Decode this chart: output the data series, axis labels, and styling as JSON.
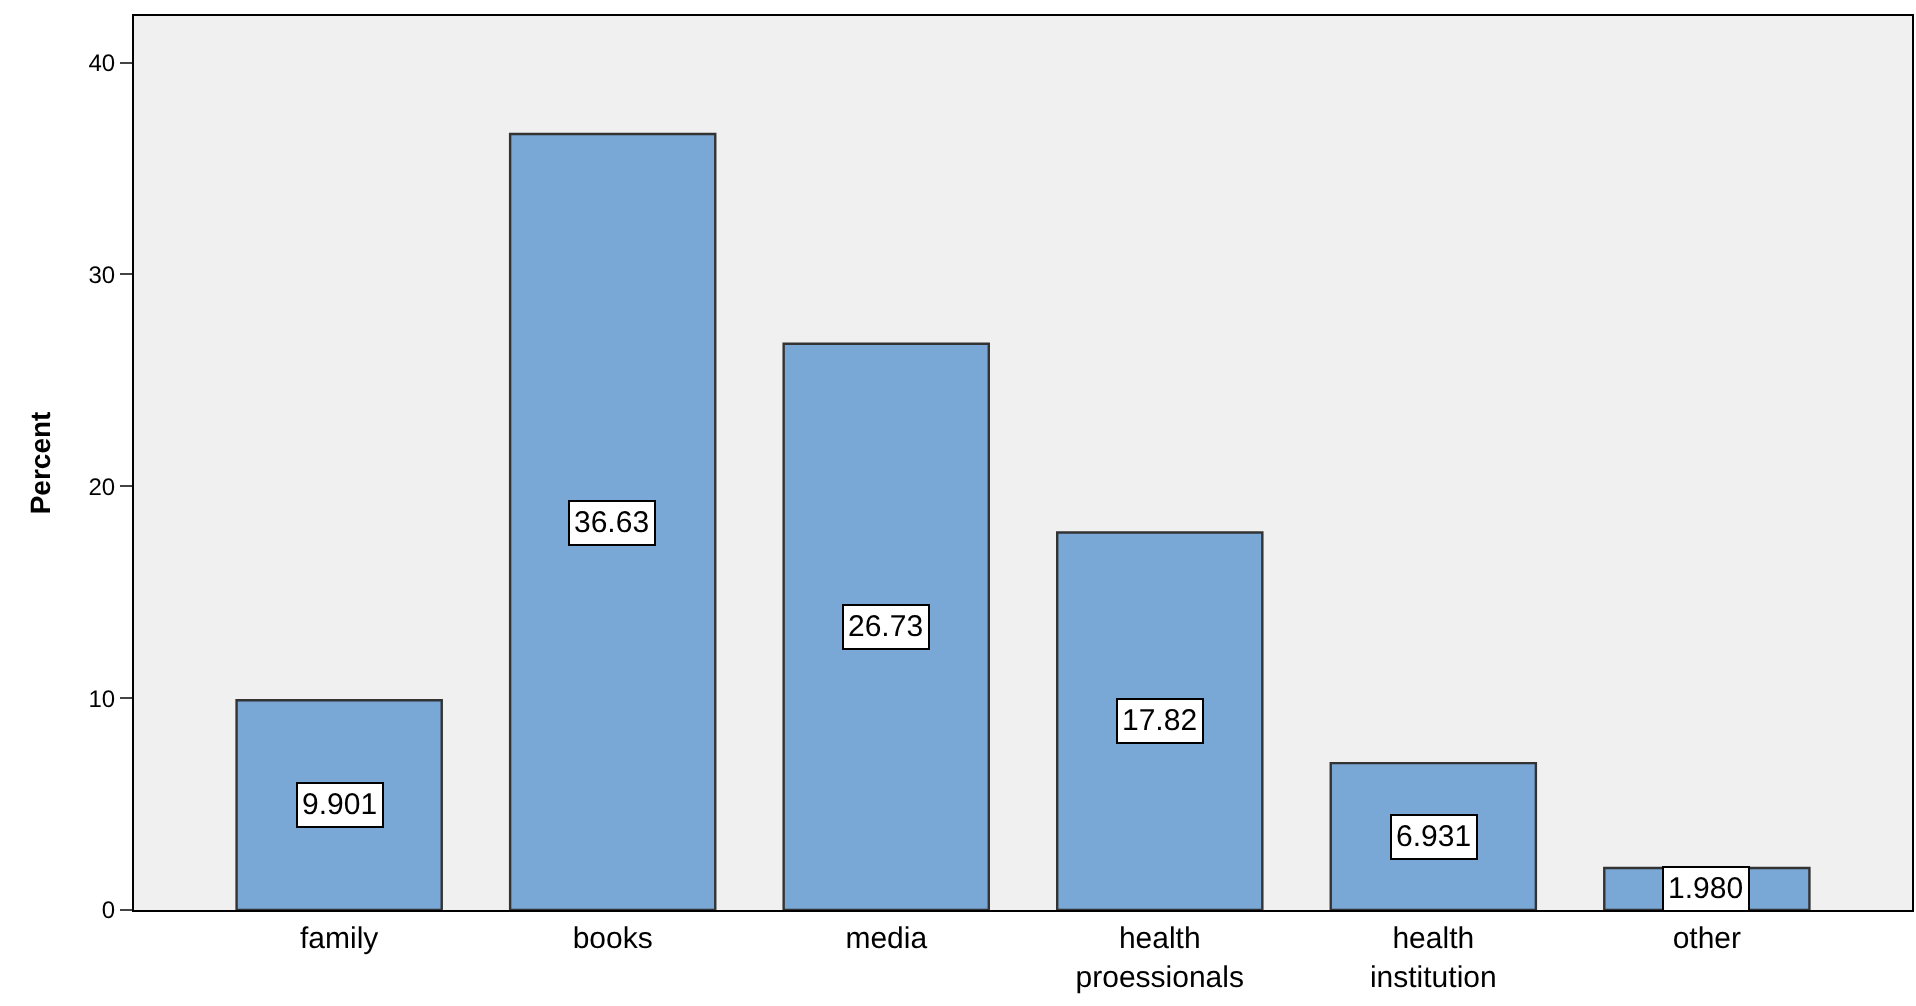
{
  "chart_data": {
    "type": "bar",
    "ylabel": "Percent",
    "categories": [
      "family",
      "books",
      "media",
      "health\nproessionals",
      "health\ninstitution",
      "other"
    ],
    "values": [
      9.901,
      36.63,
      26.73,
      17.82,
      6.931,
      1.98
    ],
    "value_labels": [
      "9.901",
      "36.63",
      "26.73",
      "17.82",
      "6.931",
      "1.980"
    ],
    "color": "#79a7d6",
    "ylim": [
      0,
      42.2
    ],
    "yticks": [
      0,
      10,
      20,
      30,
      40
    ],
    "grid": false,
    "legend": false
  }
}
